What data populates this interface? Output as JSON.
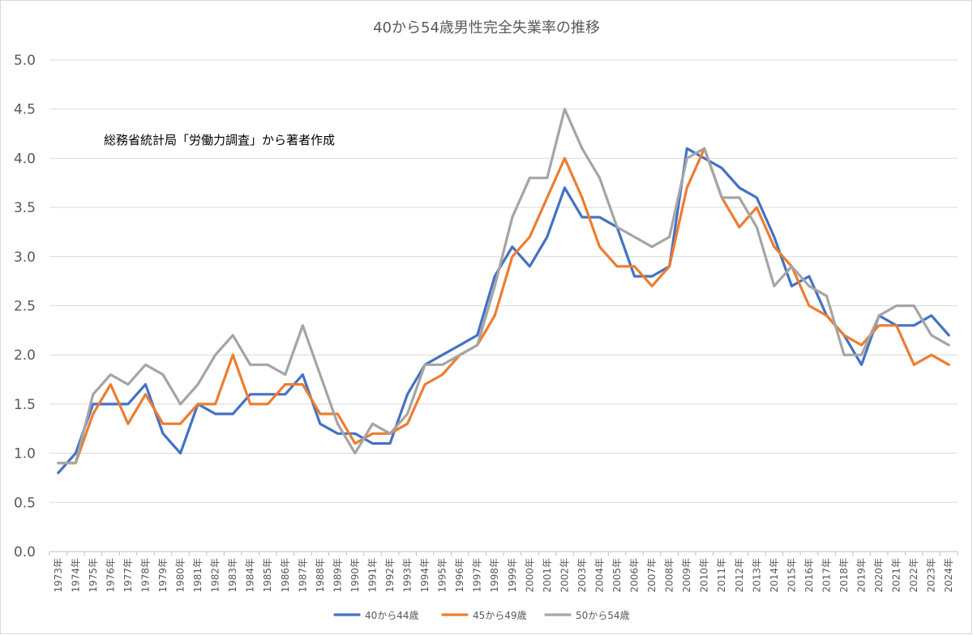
{
  "chart_data": {
    "type": "line",
    "title": "40から54歳男性完全失業率の推移",
    "annotation": "総務省統計局「労働力調査」から著者作成",
    "ylim": [
      0,
      5
    ],
    "yticks": [
      "0.0",
      "0.5",
      "1.0",
      "1.5",
      "2.0",
      "2.5",
      "3.0",
      "3.5",
      "4.0",
      "4.5",
      "5.0"
    ],
    "grid": true,
    "legend_position": "bottom",
    "categories": [
      "1973年",
      "1974年",
      "1975年",
      "1976年",
      "1977年",
      "1978年",
      "1979年",
      "1980年",
      "1981年",
      "1982年",
      "1983年",
      "1984年",
      "1985年",
      "1986年",
      "1987年",
      "1988年",
      "1989年",
      "1990年",
      "1991年",
      "1992年",
      "1993年",
      "1994年",
      "1995年",
      "1996年",
      "1997年",
      "1998年",
      "1999年",
      "2000年",
      "2001年",
      "2002年",
      "2003年",
      "2004年",
      "2005年",
      "2006年",
      "2007年",
      "2008年",
      "2009年",
      "2010年",
      "2011年",
      "2012年",
      "2013年",
      "2014年",
      "2015年",
      "2016年",
      "2017年",
      "2018年",
      "2019年",
      "2020年",
      "2021年",
      "2022年",
      "2023年",
      "2024年"
    ],
    "series": [
      {
        "name": "40から44歳",
        "color": "#4472c4",
        "values": [
          0.8,
          1.0,
          1.5,
          1.5,
          1.5,
          1.7,
          1.2,
          1.0,
          1.5,
          1.4,
          1.4,
          1.6,
          1.6,
          1.6,
          1.8,
          1.3,
          1.2,
          1.2,
          1.1,
          1.1,
          1.6,
          1.9,
          2.0,
          2.1,
          2.2,
          2.8,
          3.1,
          2.9,
          3.2,
          3.7,
          3.4,
          3.4,
          3.3,
          2.8,
          2.8,
          2.9,
          4.1,
          4.0,
          3.9,
          3.7,
          3.6,
          3.2,
          2.7,
          2.8,
          2.4,
          2.2,
          1.9,
          2.4,
          2.3,
          2.3,
          2.4,
          2.2
        ]
      },
      {
        "name": "45から49歳",
        "color": "#ed7d31",
        "values": [
          0.9,
          0.9,
          1.4,
          1.7,
          1.3,
          1.6,
          1.3,
          1.3,
          1.5,
          1.5,
          2.0,
          1.5,
          1.5,
          1.7,
          1.7,
          1.4,
          1.4,
          1.1,
          1.2,
          1.2,
          1.3,
          1.7,
          1.8,
          2.0,
          2.1,
          2.4,
          3.0,
          3.2,
          3.6,
          4.0,
          3.6,
          3.1,
          2.9,
          2.9,
          2.7,
          2.9,
          3.7,
          4.1,
          3.6,
          3.3,
          3.5,
          3.1,
          2.9,
          2.5,
          2.4,
          2.2,
          2.1,
          2.3,
          2.3,
          1.9,
          2.0,
          1.9
        ]
      },
      {
        "name": "50から54歳",
        "color": "#a5a5a5",
        "values": [
          0.9,
          0.9,
          1.6,
          1.8,
          1.7,
          1.9,
          1.8,
          1.5,
          1.7,
          2.0,
          2.2,
          1.9,
          1.9,
          1.8,
          2.3,
          1.8,
          1.3,
          1.0,
          1.3,
          1.2,
          1.4,
          1.9,
          1.9,
          2.0,
          2.1,
          2.7,
          3.4,
          3.8,
          3.8,
          4.5,
          4.1,
          3.8,
          3.3,
          3.2,
          3.1,
          3.2,
          4.0,
          4.1,
          3.6,
          3.6,
          3.3,
          2.7,
          2.9,
          2.7,
          2.6,
          2.0,
          2.0,
          2.4,
          2.5,
          2.5,
          2.2,
          2.1
        ]
      }
    ]
  }
}
